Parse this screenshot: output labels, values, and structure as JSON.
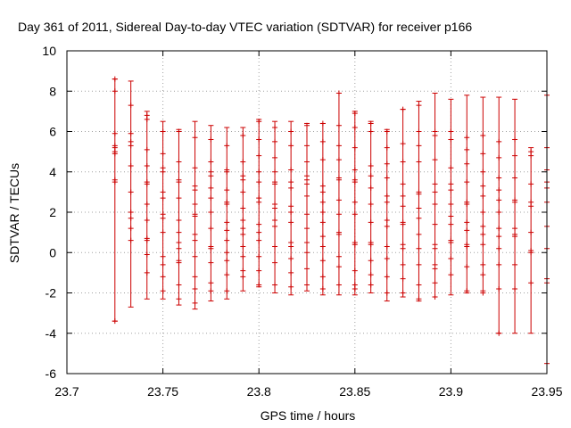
{
  "chart_data": {
    "type": "errorbar",
    "title": "Day 361 of 2011, Sidereal Day-to-day VTEC variation (SDTVAR) for receiver p166",
    "xlabel": "GPS time / hours",
    "ylabel": "SDTVAR / TECUs",
    "xlim": [
      23.7,
      23.95
    ],
    "ylim": [
      -6,
      10
    ],
    "xticks": [
      "23.7",
      "23.75",
      "23.8",
      "23.85",
      "23.9",
      "23.95"
    ],
    "yticks": [
      "-6",
      "-4",
      "-2",
      "0",
      "2",
      "4",
      "6",
      "8",
      "10"
    ],
    "grid": true,
    "color": "#cc0000",
    "series": [
      {
        "x": 23.725,
        "low": -3.4,
        "high": 8.6,
        "points": [
          8.6,
          8.0,
          5.9,
          5.3,
          5.2,
          5.0,
          4.9,
          3.6,
          3.5,
          -3.4
        ]
      },
      {
        "x": 23.7333,
        "low": -2.7,
        "high": 8.5,
        "points": [
          7.3,
          5.9,
          5.5,
          5.3,
          4.3,
          3.0,
          2.0,
          1.7,
          1.2,
          0.6
        ]
      },
      {
        "x": 23.7417,
        "low": -2.3,
        "high": 7.0,
        "points": [
          6.8,
          6.6,
          5.1,
          4.3,
          3.5,
          3.4,
          2.4,
          1.6,
          0.7,
          0.6,
          -0.1,
          -1.0
        ]
      },
      {
        "x": 23.75,
        "low": -2.3,
        "high": 6.5,
        "points": [
          6.0,
          4.9,
          4.2,
          4.0,
          3.0,
          2.7,
          1.9,
          1.7,
          1.0,
          -0.2,
          -0.6,
          -1.2,
          -1.9
        ]
      },
      {
        "x": 23.7583,
        "low": -2.6,
        "high": 6.1,
        "points": [
          6.0,
          4.5,
          3.6,
          3.5,
          2.7,
          1.6,
          1.0,
          0.5,
          0.2,
          -0.4,
          -0.5,
          -1.6,
          -2.3
        ]
      },
      {
        "x": 23.7667,
        "low": -2.8,
        "high": 6.5,
        "points": [
          5.7,
          4.2,
          3.3,
          3.1,
          2.4,
          1.9,
          1.8,
          0.9,
          0.6,
          -0.2,
          -1.2,
          -1.8,
          -2.5
        ]
      },
      {
        "x": 23.775,
        "low": -2.4,
        "high": 6.3,
        "points": [
          5.6,
          4.5,
          4.0,
          3.8,
          3.2,
          2.7,
          2.0,
          1.2,
          0.3,
          0.2,
          -0.5,
          -1.5,
          -1.9
        ]
      },
      {
        "x": 23.7833,
        "low": -2.3,
        "high": 6.2,
        "points": [
          5.3,
          4.1,
          4.0,
          3.1,
          2.5,
          2.4,
          1.5,
          1.1,
          0.6,
          0.0,
          -0.4,
          -1.1,
          -1.9
        ]
      },
      {
        "x": 23.7917,
        "low": -1.9,
        "high": 6.2,
        "points": [
          5.8,
          4.5,
          3.8,
          3.6,
          3.0,
          2.2,
          1.6,
          1.2,
          0.9,
          0.3,
          -0.2,
          -0.9,
          -1.2
        ]
      },
      {
        "x": 23.8,
        "low": -1.7,
        "high": 6.6,
        "points": [
          6.5,
          5.6,
          4.8,
          4.0,
          3.5,
          2.7,
          2.5,
          1.4,
          1.0,
          0.6,
          -0.2,
          -0.9,
          -1.6
        ]
      },
      {
        "x": 23.8083,
        "low": -2.0,
        "high": 6.5,
        "points": [
          6.2,
          5.5,
          4.7,
          4.0,
          3.5,
          3.4,
          2.4,
          2.2,
          1.6,
          1.3,
          0.3,
          -0.5,
          -1.6
        ]
      },
      {
        "x": 23.8167,
        "low": -2.1,
        "high": 6.5,
        "points": [
          6.0,
          5.3,
          4.1,
          3.5,
          3.2,
          2.3,
          2.0,
          1.5,
          0.5,
          0.3,
          -0.3,
          -1.0,
          -1.7
        ]
      },
      {
        "x": 23.825,
        "low": -1.9,
        "high": 6.4,
        "points": [
          6.3,
          5.3,
          4.5,
          3.8,
          3.6,
          3.4,
          2.8,
          1.9,
          1.2,
          0.5,
          0.0,
          -0.8,
          -1.6
        ]
      },
      {
        "x": 23.8333,
        "low": -2.1,
        "high": 6.4,
        "points": [
          6.4,
          5.5,
          4.6,
          3.3,
          3.0,
          2.5,
          2.0,
          1.5,
          0.8,
          0.3,
          -0.4,
          -1.2,
          -1.8
        ]
      },
      {
        "x": 23.8417,
        "low": -2.1,
        "high": 7.9,
        "points": [
          7.9,
          6.3,
          5.3,
          4.6,
          3.7,
          3.6,
          2.6,
          1.9,
          1.0,
          0.9,
          -0.2,
          -0.7,
          -1.6
        ]
      },
      {
        "x": 23.85,
        "low": -2.1,
        "high": 7.0,
        "points": [
          6.9,
          6.2,
          5.2,
          4.1,
          3.6,
          3.5,
          2.5,
          1.9,
          0.5,
          0.4,
          -0.9,
          -1.6,
          -1.8
        ]
      },
      {
        "x": 23.8583,
        "low": -2.0,
        "high": 6.5,
        "points": [
          6.4,
          6.0,
          4.3,
          3.8,
          3.2,
          2.4,
          1.5,
          0.5,
          0.4,
          -0.4,
          -1.1,
          -1.6
        ]
      },
      {
        "x": 23.8667,
        "low": -2.4,
        "high": 6.1,
        "points": [
          6.0,
          5.2,
          4.4,
          3.7,
          2.8,
          2.5,
          1.6,
          1.3,
          0.3,
          -0.3,
          -1.2,
          -2.0
        ]
      },
      {
        "x": 23.875,
        "low": -2.2,
        "high": 7.1,
        "points": [
          7.1,
          5.4,
          4.5,
          3.4,
          2.8,
          2.3,
          1.5,
          1.4,
          0.4,
          0.2,
          -0.6,
          -1.3,
          -2.0
        ]
      },
      {
        "x": 23.8833,
        "low": -2.4,
        "high": 7.5,
        "points": [
          7.3,
          6.0,
          5.3,
          4.5,
          3.0,
          2.9,
          2.2,
          1.7,
          0.9,
          0.2,
          -0.6,
          -1.6,
          -2.3
        ]
      },
      {
        "x": 23.8917,
        "low": -2.2,
        "high": 7.9,
        "points": [
          6.0,
          5.8,
          4.6,
          3.4,
          3.0,
          2.4,
          1.4,
          0.4,
          0.2,
          -0.6,
          -0.8,
          -1.5,
          -2.2
        ]
      },
      {
        "x": 23.9,
        "low": -2.1,
        "high": 7.6,
        "points": [
          6.0,
          5.6,
          4.2,
          3.4,
          3.1,
          2.4,
          1.8,
          1.4,
          0.6,
          0.5,
          -0.3,
          -1.1
        ]
      },
      {
        "x": 23.9083,
        "low": -2.0,
        "high": 7.8,
        "points": [
          5.7,
          5.1,
          4.4,
          3.5,
          2.5,
          2.4,
          1.5,
          1.1,
          0.4,
          0.3,
          -0.7,
          -1.9
        ]
      },
      {
        "x": 23.9167,
        "low": -1.9,
        "high": 7.7,
        "points": [
          5.8,
          4.9,
          4.0,
          3.3,
          2.8,
          2.0,
          1.3,
          0.9,
          0.4,
          -0.6,
          -1.1,
          -2.0
        ]
      },
      {
        "x": 23.925,
        "low": -4.0,
        "high": 7.7,
        "points": [
          5.5,
          4.7,
          3.7,
          3.1,
          2.6,
          2.0,
          1.2,
          0.8,
          0.2,
          -0.6,
          -1.8,
          -4.0
        ]
      },
      {
        "x": 23.9333,
        "low": -4.0,
        "high": 7.6,
        "points": [
          5.6,
          4.8,
          3.7,
          2.6,
          2.5,
          1.2,
          0.9,
          0.8,
          -0.6,
          -1.8
        ]
      },
      {
        "x": 23.9417,
        "low": -4.0,
        "high": 5.2,
        "points": [
          5.0,
          4.8,
          3.4,
          2.5,
          2.3,
          1.0,
          0.1,
          0.0,
          -1.5
        ]
      },
      {
        "x": 23.95,
        "low": -5.5,
        "high": 7.8,
        "points": [
          5.2,
          4.1,
          3.5,
          3.2,
          2.5,
          1.3,
          0.2,
          -1.3,
          -1.5
        ]
      }
    ]
  }
}
